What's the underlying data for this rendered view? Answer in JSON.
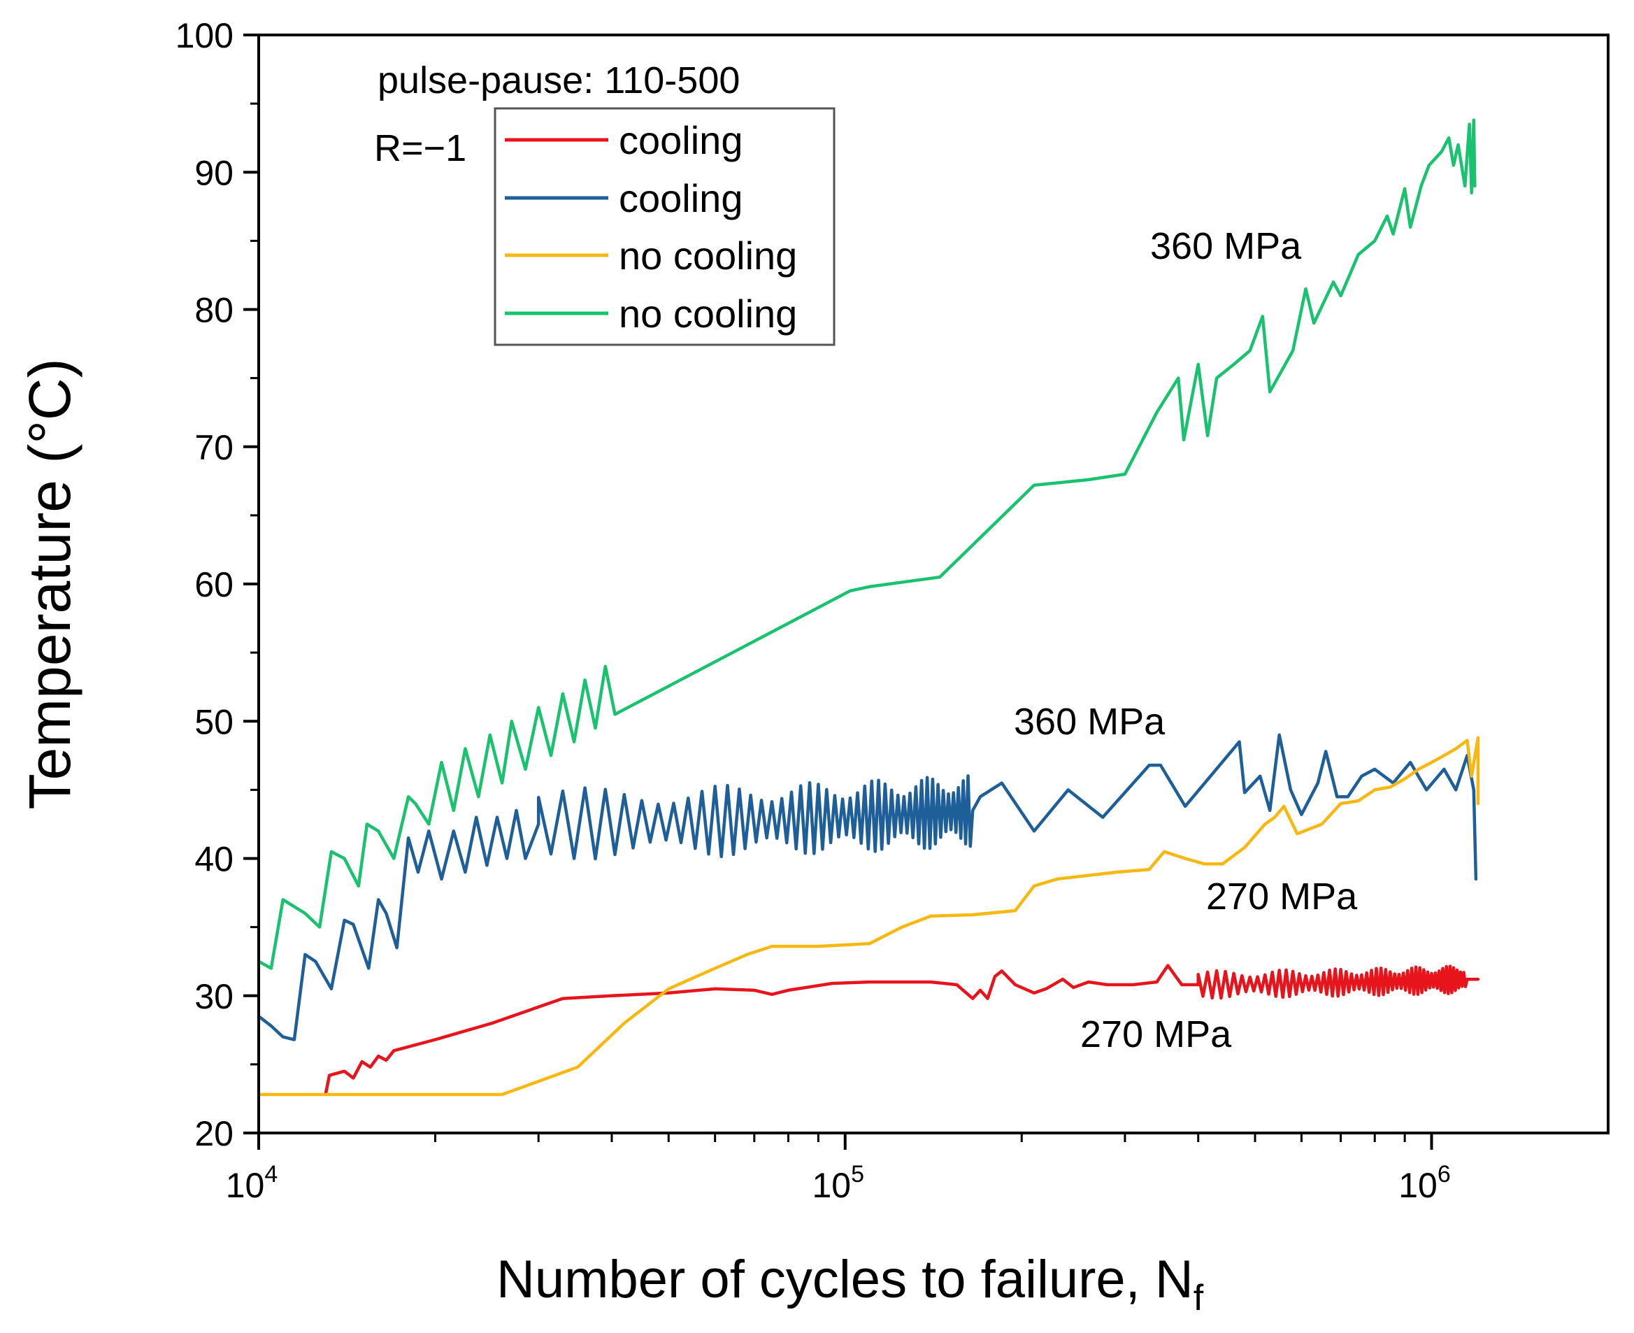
{
  "chart_data": {
    "type": "line",
    "title": "",
    "xlabel": "Number of cycles to failure, N",
    "xlabel_subscript": "f",
    "ylabel": "Temperature (°C)",
    "xscale": "log",
    "xlim": [
      10000,
      2000000
    ],
    "ylim": [
      20,
      100
    ],
    "grid": false,
    "x_ticks": [
      {
        "value": 10000,
        "base": "10",
        "exp": "4"
      },
      {
        "value": 100000,
        "base": "10",
        "exp": "5"
      },
      {
        "value": 1000000,
        "base": "10",
        "exp": "6"
      }
    ],
    "y_ticks": [
      20,
      30,
      40,
      50,
      60,
      70,
      80,
      90,
      100
    ],
    "legend": {
      "placement": "top-left",
      "entries": [
        {
          "label": "cooling",
          "color": "#e8141c"
        },
        {
          "label": "cooling",
          "color": "#1f5f99"
        },
        {
          "label": "no cooling",
          "color": "#f7b813"
        },
        {
          "label": "no cooling",
          "color": "#19c26e"
        }
      ]
    },
    "annotations": [
      {
        "id": "pulse",
        "text": "pulse-pause: 110-500"
      },
      {
        "id": "ratio",
        "text": "R=−1"
      },
      {
        "id": "green-stress",
        "text": "360 MPa",
        "x": 220000,
        "y": 84
      },
      {
        "id": "blue-stress",
        "text": "360 MPa",
        "x": 150000,
        "y": 49
      },
      {
        "id": "yellow-stress",
        "text": "270 MPa",
        "x": 500000,
        "y": 37
      },
      {
        "id": "red-stress",
        "text": "270 MPa",
        "x": 280000,
        "y": 27
      }
    ],
    "series": [
      {
        "name": "cooling 270 MPa",
        "color": "#e8141c",
        "osc": {
          "x0": 400000,
          "x1": 1150000,
          "amp": 1.0,
          "period": 15000
        },
        "points": [
          [
            13000,
            22.8
          ],
          [
            13200,
            24.2
          ],
          [
            14000,
            24.5
          ],
          [
            14500,
            24.0
          ],
          [
            15000,
            25.2
          ],
          [
            15500,
            24.8
          ],
          [
            16000,
            25.6
          ],
          [
            16500,
            25.3
          ],
          [
            17000,
            26.0
          ],
          [
            20000,
            26.8
          ],
          [
            25000,
            28.0
          ],
          [
            33000,
            29.8
          ],
          [
            40000,
            30.0
          ],
          [
            50000,
            30.2
          ],
          [
            60000,
            30.5
          ],
          [
            70000,
            30.4
          ],
          [
            75000,
            30.1
          ],
          [
            80000,
            30.4
          ],
          [
            95000,
            30.9
          ],
          [
            110000,
            31.0
          ],
          [
            140000,
            31.0
          ],
          [
            155000,
            30.8
          ],
          [
            165000,
            29.8
          ],
          [
            170000,
            30.4
          ],
          [
            175000,
            29.8
          ],
          [
            180000,
            31.4
          ],
          [
            185000,
            31.8
          ],
          [
            195000,
            30.8
          ],
          [
            210000,
            30.2
          ],
          [
            220000,
            30.5
          ],
          [
            235000,
            31.2
          ],
          [
            245000,
            30.6
          ],
          [
            260000,
            31.0
          ],
          [
            280000,
            30.8
          ],
          [
            310000,
            30.8
          ],
          [
            340000,
            31.0
          ],
          [
            355000,
            32.2
          ],
          [
            375000,
            30.8
          ],
          [
            400000,
            30.8
          ],
          [
            1150000,
            31.2
          ],
          [
            1200000,
            31.2
          ]
        ]
      },
      {
        "name": "cooling 360 MPa",
        "color": "#1f5f99",
        "osc": {
          "x0": 30000,
          "x1": 165000,
          "amp": 2.6,
          "period": 3000
        },
        "points": [
          [
            10000,
            28.5
          ],
          [
            10500,
            27.8
          ],
          [
            11000,
            27.0
          ],
          [
            11500,
            26.8
          ],
          [
            12000,
            33.0
          ],
          [
            12500,
            32.5
          ],
          [
            13300,
            30.5
          ],
          [
            14000,
            35.5
          ],
          [
            14500,
            35.2
          ],
          [
            15400,
            32.0
          ],
          [
            16000,
            37.0
          ],
          [
            16500,
            36.0
          ],
          [
            17200,
            33.5
          ],
          [
            18000,
            41.5
          ],
          [
            18700,
            39.0
          ],
          [
            19500,
            42.0
          ],
          [
            20500,
            38.5
          ],
          [
            21500,
            42.0
          ],
          [
            22500,
            39.0
          ],
          [
            23500,
            43.0
          ],
          [
            24500,
            39.5
          ],
          [
            25500,
            43.0
          ],
          [
            26500,
            40.0
          ],
          [
            27500,
            43.5
          ],
          [
            28500,
            40.0
          ],
          [
            30000,
            42.5
          ],
          [
            165000,
            43.5
          ],
          [
            170000,
            44.5
          ],
          [
            185000,
            45.5
          ],
          [
            210000,
            42.0
          ],
          [
            240000,
            45.0
          ],
          [
            275000,
            43.0
          ],
          [
            330000,
            46.8
          ],
          [
            345000,
            46.8
          ],
          [
            380000,
            43.8
          ],
          [
            470000,
            48.5
          ],
          [
            480000,
            44.8
          ],
          [
            510000,
            46.0
          ],
          [
            530000,
            43.5
          ],
          [
            550000,
            49.0
          ],
          [
            575000,
            45.0
          ],
          [
            600000,
            43.2
          ],
          [
            640000,
            45.5
          ],
          [
            660000,
            47.8
          ],
          [
            690000,
            44.5
          ],
          [
            720000,
            44.5
          ],
          [
            760000,
            46.0
          ],
          [
            800000,
            46.5
          ],
          [
            860000,
            45.5
          ],
          [
            920000,
            47.0
          ],
          [
            980000,
            45.0
          ],
          [
            1050000,
            46.5
          ],
          [
            1100000,
            45.0
          ],
          [
            1150000,
            47.5
          ],
          [
            1180000,
            45.0
          ],
          [
            1190000,
            38.5
          ]
        ]
      },
      {
        "name": "no cooling 270 MPa",
        "color": "#f7b813",
        "points": [
          [
            10000,
            22.8
          ],
          [
            26000,
            22.8
          ],
          [
            35000,
            24.8
          ],
          [
            42000,
            28.0
          ],
          [
            50000,
            30.5
          ],
          [
            60000,
            32.0
          ],
          [
            68000,
            33.0
          ],
          [
            75000,
            33.6
          ],
          [
            90000,
            33.6
          ],
          [
            110000,
            33.8
          ],
          [
            125000,
            35.0
          ],
          [
            140000,
            35.8
          ],
          [
            165000,
            35.9
          ],
          [
            195000,
            36.2
          ],
          [
            210000,
            38.0
          ],
          [
            230000,
            38.5
          ],
          [
            290000,
            39.0
          ],
          [
            330000,
            39.2
          ],
          [
            350000,
            40.5
          ],
          [
            380000,
            40.0
          ],
          [
            410000,
            39.6
          ],
          [
            440000,
            39.6
          ],
          [
            480000,
            40.8
          ],
          [
            520000,
            42.5
          ],
          [
            540000,
            43.0
          ],
          [
            560000,
            43.8
          ],
          [
            590000,
            41.8
          ],
          [
            650000,
            42.5
          ],
          [
            700000,
            44.0
          ],
          [
            750000,
            44.2
          ],
          [
            800000,
            45.0
          ],
          [
            850000,
            45.2
          ],
          [
            900000,
            45.8
          ],
          [
            950000,
            46.5
          ],
          [
            1000000,
            47.0
          ],
          [
            1050000,
            47.5
          ],
          [
            1100000,
            48.0
          ],
          [
            1150000,
            48.6
          ],
          [
            1170000,
            46.0
          ],
          [
            1200000,
            48.8
          ],
          [
            1200000,
            44.0
          ]
        ]
      },
      {
        "name": "no cooling 360 MPa",
        "color": "#19c26e",
        "osc": {
          "x0": 40000,
          "x1": 102000,
          "amp": 2.6,
          "period": 1400
        },
        "points": [
          [
            10000,
            32.5
          ],
          [
            10500,
            32.0
          ],
          [
            11000,
            37.0
          ],
          [
            12000,
            36.0
          ],
          [
            12700,
            35.0
          ],
          [
            13300,
            40.5
          ],
          [
            14000,
            40.0
          ],
          [
            14800,
            38.0
          ],
          [
            15300,
            42.5
          ],
          [
            16000,
            42.0
          ],
          [
            17000,
            40.0
          ],
          [
            18000,
            44.5
          ],
          [
            18500,
            44.0
          ],
          [
            19500,
            42.5
          ],
          [
            20500,
            47.0
          ],
          [
            21500,
            43.5
          ],
          [
            22500,
            48.0
          ],
          [
            23700,
            44.5
          ],
          [
            24800,
            49.0
          ],
          [
            26000,
            45.5
          ],
          [
            27000,
            50.0
          ],
          [
            28500,
            46.5
          ],
          [
            30000,
            51.0
          ],
          [
            31500,
            47.5
          ],
          [
            33000,
            52.0
          ],
          [
            34500,
            48.5
          ],
          [
            36000,
            53.0
          ],
          [
            37500,
            49.5
          ],
          [
            39000,
            54.0
          ],
          [
            40500,
            50.5
          ],
          [
            102000,
            59.5
          ],
          [
            110000,
            59.8
          ],
          [
            145000,
            60.5
          ],
          [
            210000,
            67.2
          ],
          [
            260000,
            67.6
          ],
          [
            300000,
            68.0
          ],
          [
            340000,
            72.5
          ],
          [
            370000,
            75.0
          ],
          [
            378000,
            70.5
          ],
          [
            400000,
            76.0
          ],
          [
            415000,
            70.8
          ],
          [
            430000,
            75.0
          ],
          [
            460000,
            76.0
          ],
          [
            490000,
            77.0
          ],
          [
            515000,
            79.5
          ],
          [
            530000,
            74.0
          ],
          [
            580000,
            77.0
          ],
          [
            610000,
            81.5
          ],
          [
            630000,
            79.0
          ],
          [
            680000,
            82.0
          ],
          [
            700000,
            81.0
          ],
          [
            750000,
            84.0
          ],
          [
            800000,
            85.0
          ],
          [
            840000,
            86.8
          ],
          [
            860000,
            85.5
          ],
          [
            900000,
            88.8
          ],
          [
            920000,
            86.0
          ],
          [
            960000,
            89.0
          ],
          [
            990000,
            90.5
          ],
          [
            1040000,
            91.5
          ],
          [
            1070000,
            92.5
          ],
          [
            1090000,
            90.5
          ],
          [
            1110000,
            92.0
          ],
          [
            1140000,
            89.0
          ],
          [
            1160000,
            93.5
          ],
          [
            1170000,
            88.5
          ],
          [
            1180000,
            93.8
          ],
          [
            1185000,
            89.0
          ]
        ]
      }
    ]
  }
}
